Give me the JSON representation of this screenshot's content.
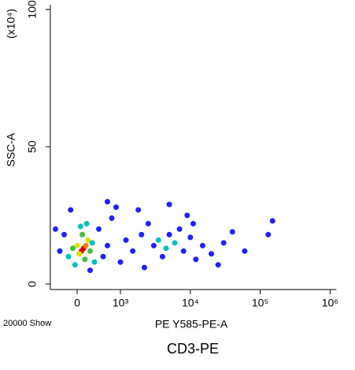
{
  "chart_data": {
    "type": "scatter",
    "title": "CD3-PE",
    "x_label": "PE Y585-PE-A",
    "y_label": "SSC-A",
    "y_multiplier": "(x10⁴)",
    "event_count": "20000 Show",
    "xscale": "biexponential",
    "xlim": [
      -620,
      1000000
    ],
    "xticks": [
      0,
      {
        "value": 1000,
        "label": "10³"
      },
      {
        "value": 10000,
        "label": "10⁴"
      },
      {
        "value": 100000,
        "label": "10⁵"
      },
      {
        "value": 1000000,
        "label": "10⁶"
      }
    ],
    "ylim": [
      -2,
      100
    ],
    "yticks": [
      0,
      50,
      100
    ],
    "x": [
      150,
      100,
      200,
      50,
      250,
      0,
      300,
      -100,
      120,
      180,
      350,
      -200,
      80,
      400,
      -50,
      220,
      -400,
      -300,
      500,
      600,
      700,
      800,
      1200,
      1500,
      2000,
      2500,
      3000,
      4000,
      5000,
      6000,
      7000,
      8000,
      3500,
      4500,
      10000,
      12000,
      15000,
      9000,
      1800,
      900,
      -150,
      300,
      2200,
      20000,
      30000,
      40000,
      60000,
      130000,
      150000,
      25000,
      -500,
      700,
      5000,
      11000,
      1000
    ],
    "y": [
      13,
      12,
      14,
      11,
      16,
      14,
      12,
      13,
      18,
      9,
      15,
      10,
      21,
      8,
      7,
      22,
      12,
      18,
      20,
      10,
      14,
      24,
      16,
      12,
      18,
      22,
      14,
      10,
      18,
      15,
      20,
      12,
      16,
      13,
      17,
      9,
      14,
      25,
      27,
      28,
      27,
      5,
      6,
      11,
      15,
      19,
      12,
      18,
      23,
      7,
      20,
      30,
      29,
      22,
      8
    ],
    "colors": [
      "#e00000",
      "#e00000",
      "#ff8000",
      "#e0e000",
      "#e0e000",
      "#e0e000",
      "#40c040",
      "#40c040",
      "#40c040",
      "#40c040",
      "#00c0c0",
      "#00c0c0",
      "#00c0c0",
      "#00c0c0",
      "#00c0c0",
      "#00c0c0",
      "#2020ff",
      "#2020ff",
      "#2020ff",
      "#2020ff",
      "#2020ff",
      "#2020ff",
      "#2020ff",
      "#2020ff",
      "#2020ff",
      "#2020ff",
      "#2020ff",
      "#2020ff",
      "#2020ff",
      "#00c0c0",
      "#2020ff",
      "#2020ff",
      "#00c0c0",
      "#00c0c0",
      "#2020ff",
      "#2020ff",
      "#2020ff",
      "#2020ff",
      "#2020ff",
      "#2020ff",
      "#2020ff",
      "#2020ff",
      "#2020ff",
      "#2020ff",
      "#2020ff",
      "#2020ff",
      "#2020ff",
      "#2020ff",
      "#2020ff",
      "#2020ff",
      "#2020ff",
      "#2020ff",
      "#2020ff",
      "#2020ff",
      "#2020ff"
    ]
  }
}
